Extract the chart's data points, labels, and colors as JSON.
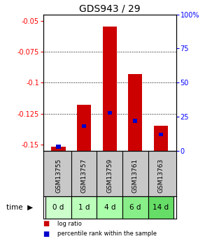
{
  "title": "GDS943 / 29",
  "samples": [
    "GSM13755",
    "GSM13757",
    "GSM13759",
    "GSM13761",
    "GSM13763"
  ],
  "time_labels": [
    "0 d",
    "1 d",
    "4 d",
    "6 d",
    "14 d"
  ],
  "log_ratio": [
    -0.152,
    -0.118,
    -0.055,
    -0.093,
    -0.135
  ],
  "percentile_rank": [
    3,
    18,
    28,
    22,
    12
  ],
  "ylim_left": [
    -0.155,
    -0.045
  ],
  "yticks_left": [
    -0.05,
    -0.075,
    -0.1,
    -0.125,
    -0.15
  ],
  "yticks_right": [
    0,
    25,
    50,
    75,
    100
  ],
  "bar_color": "#cc0000",
  "blue_color": "#0000cc",
  "bar_width": 0.55,
  "bg_color_samples": "#c8c8c8",
  "time_bg_colors": [
    "#ccffcc",
    "#bbffbb",
    "#aaffaa",
    "#88ee88",
    "#66dd66"
  ],
  "title_fontsize": 10,
  "tick_fontsize": 7,
  "sample_fontsize": 6.5,
  "time_fontsize": 7.5,
  "legend_fontsize": 6
}
